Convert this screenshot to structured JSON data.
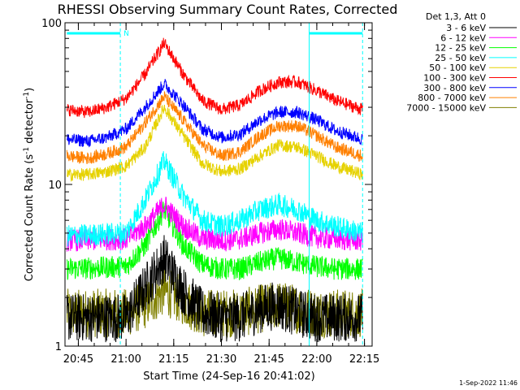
{
  "chart_data": {
    "type": "line",
    "title": "RHESSI Observing Summary Count Rates, Corrected",
    "xlabel": "Start Time (24-Sep-16 20:41:02)",
    "ylabel_main": "Corrected Count Rate (s",
    "ylabel_sup1": "-1",
    "ylabel_mid": " detector",
    "ylabel_sup2": "-1",
    "ylabel_end": ")",
    "yscale": "log",
    "ylim": [
      1,
      100
    ],
    "xlim_minutes": [
      20.68,
      22.29
    ],
    "y_ticks": [
      {
        "value": 1,
        "label": "1"
      },
      {
        "value": 10,
        "label": "10"
      },
      {
        "value": 100,
        "label": "100"
      }
    ],
    "x_ticks": [
      {
        "value": 20.75,
        "label": "20:45"
      },
      {
        "value": 21.0,
        "label": "21:00"
      },
      {
        "value": 21.25,
        "label": "21:15"
      },
      {
        "value": 21.5,
        "label": "21:30"
      },
      {
        "value": 21.75,
        "label": "21:45"
      },
      {
        "value": 22.0,
        "label": "22:00"
      },
      {
        "value": 22.25,
        "label": "22:15"
      }
    ],
    "legend": {
      "title": "Det 1,3, Att 0",
      "placement": "outside-right"
    },
    "night_label": "N",
    "night_bars": [
      [
        20.69,
        20.97
      ],
      [
        21.96,
        22.24
      ]
    ],
    "marker_lines": [
      {
        "x": 20.97,
        "style": "dashed",
        "color": "#00ffff"
      },
      {
        "x": 21.96,
        "style": "solid",
        "color": "#00ffff"
      },
      {
        "x": 22.24,
        "style": "dashed",
        "color": "#00ffff"
      }
    ],
    "series": [
      {
        "name": "3 - 6 keV",
        "color": "#000000",
        "x": [
          20.69,
          21.0,
          21.1,
          21.2,
          21.3,
          21.4,
          21.5,
          21.6,
          21.7,
          21.8,
          21.9,
          22.0,
          22.1,
          22.24
        ],
        "y": [
          1.5,
          1.5,
          2.3,
          3.5,
          2.2,
          1.6,
          1.5,
          1.5,
          1.7,
          1.8,
          1.6,
          1.5,
          1.5,
          1.5
        ]
      },
      {
        "name": "6 - 12 keV",
        "color": "#ff00ff",
        "x": [
          20.69,
          21.0,
          21.1,
          21.2,
          21.3,
          21.4,
          21.5,
          21.6,
          21.7,
          21.8,
          21.9,
          22.0,
          22.1,
          22.24
        ],
        "y": [
          4.5,
          4.6,
          5.5,
          7.5,
          5.5,
          4.6,
          4.5,
          4.6,
          5.0,
          5.3,
          5.0,
          4.7,
          4.6,
          4.5
        ]
      },
      {
        "name": "12 - 25 keV",
        "color": "#00ff00",
        "x": [
          20.69,
          21.0,
          21.1,
          21.2,
          21.3,
          21.4,
          21.5,
          21.6,
          21.7,
          21.8,
          21.9,
          22.0,
          22.1,
          22.24
        ],
        "y": [
          3.0,
          3.1,
          4.2,
          7.0,
          4.2,
          3.2,
          3.0,
          3.0,
          3.3,
          3.5,
          3.3,
          3.1,
          3.0,
          3.0
        ]
      },
      {
        "name": "25 - 50 keV",
        "color": "#00ffff",
        "x": [
          20.69,
          21.0,
          21.1,
          21.2,
          21.3,
          21.4,
          21.5,
          21.6,
          21.7,
          21.8,
          21.9,
          22.0,
          22.1,
          22.24
        ],
        "y": [
          4.8,
          5.0,
          8.0,
          14.0,
          8.5,
          6.0,
          5.5,
          6.0,
          7.0,
          7.5,
          7.0,
          6.0,
          5.5,
          5.0
        ]
      },
      {
        "name": "50 - 100 keV",
        "color": "#e6d200",
        "x": [
          20.69,
          20.8,
          20.9,
          21.0,
          21.1,
          21.2,
          21.3,
          21.4,
          21.5,
          21.6,
          21.7,
          21.8,
          21.9,
          22.0,
          22.1,
          22.24
        ],
        "y": [
          11.5,
          11.5,
          12.0,
          13.0,
          17.0,
          30.0,
          20.0,
          13.5,
          12.0,
          12.5,
          15.0,
          17.5,
          17.0,
          15.0,
          13.0,
          11.5
        ]
      },
      {
        "name": "100 - 300 keV",
        "color": "#ff0000",
        "x": [
          20.69,
          20.8,
          20.9,
          21.0,
          21.1,
          21.2,
          21.3,
          21.4,
          21.5,
          21.6,
          21.7,
          21.8,
          21.9,
          22.0,
          22.1,
          22.24
        ],
        "y": [
          29.0,
          28.0,
          30.0,
          34.0,
          48.0,
          75.0,
          48.0,
          33.0,
          29.0,
          31.0,
          38.0,
          43.0,
          43.0,
          38.0,
          33.0,
          29.0
        ]
      },
      {
        "name": "300 - 800 keV",
        "color": "#0000ff",
        "x": [
          20.69,
          20.8,
          20.9,
          21.0,
          21.1,
          21.2,
          21.3,
          21.4,
          21.5,
          21.6,
          21.7,
          21.8,
          21.9,
          22.0,
          22.1,
          22.24
        ],
        "y": [
          19.0,
          18.5,
          19.5,
          22.0,
          30.0,
          42.0,
          31.0,
          22.0,
          19.5,
          20.5,
          25.0,
          28.0,
          28.0,
          25.0,
          21.5,
          19.0
        ]
      },
      {
        "name": "800 - 7000 keV",
        "color": "#ff8000",
        "x": [
          20.69,
          20.8,
          20.9,
          21.0,
          21.1,
          21.2,
          21.3,
          21.4,
          21.5,
          21.6,
          21.7,
          21.8,
          21.9,
          22.0,
          22.1,
          22.24
        ],
        "y": [
          15.0,
          14.5,
          15.5,
          17.0,
          24.0,
          35.0,
          25.0,
          17.5,
          15.0,
          16.0,
          20.0,
          23.0,
          23.0,
          20.0,
          17.0,
          15.0
        ]
      },
      {
        "name": "7000 - 15000 keV",
        "color": "#808000",
        "x": [
          20.69,
          21.0,
          21.1,
          21.2,
          21.3,
          21.4,
          21.5,
          21.6,
          21.7,
          21.8,
          21.9,
          22.0,
          22.1,
          22.24
        ],
        "y": [
          1.6,
          1.6,
          1.8,
          2.2,
          1.9,
          1.6,
          1.6,
          1.6,
          1.7,
          1.8,
          1.7,
          1.6,
          1.6,
          1.6
        ]
      }
    ]
  },
  "footer": {
    "timestamp": "1-Sep-2022 11:46"
  }
}
